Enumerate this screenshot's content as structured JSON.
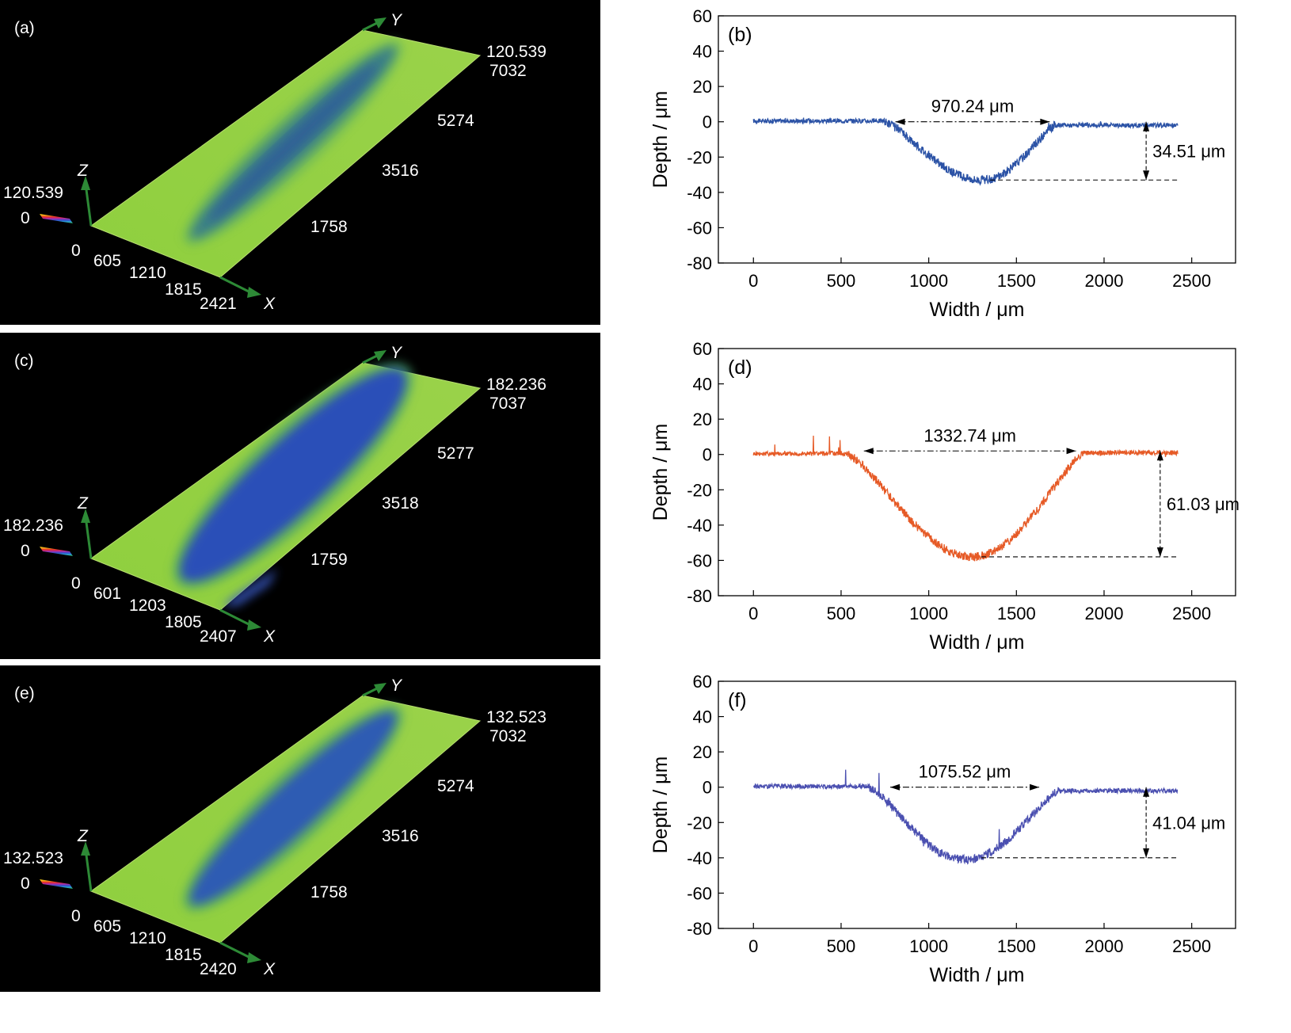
{
  "panels3d": [
    {
      "label": "(a)",
      "zmax": "120.539",
      "zmin": "0",
      "x_axis": "X",
      "y_axis": "Y",
      "z_axis": "Z",
      "x_ticks": [
        "0",
        "605",
        "1210",
        "1815",
        "2421"
      ],
      "y_ticks": [
        "1758",
        "3516",
        "5274",
        "7032"
      ],
      "corner_z": "120.539",
      "groove": "shallow"
    },
    {
      "label": "(c)",
      "zmax": "182.236",
      "zmin": "0",
      "x_axis": "X",
      "y_axis": "Y",
      "z_axis": "Z",
      "x_ticks": [
        "0",
        "601",
        "1203",
        "1805",
        "2407"
      ],
      "y_ticks": [
        "1759",
        "3518",
        "5277",
        "7037"
      ],
      "corner_z": "182.236",
      "groove": "deep"
    },
    {
      "label": "(e)",
      "zmax": "132.523",
      "zmin": "0",
      "x_axis": "X",
      "y_axis": "Y",
      "z_axis": "Z",
      "x_ticks": [
        "0",
        "605",
        "1210",
        "1815",
        "2420"
      ],
      "y_ticks": [
        "1758",
        "3516",
        "5274",
        "7032"
      ],
      "corner_z": "132.523",
      "groove": "medium"
    }
  ],
  "chart_data": [
    {
      "type": "line",
      "panel_label": "(b)",
      "xlabel": "Width / μm",
      "ylabel": "Depth / μm",
      "xlim": [
        -200,
        2750
      ],
      "ylim": [
        -80,
        60
      ],
      "xticks": [
        0,
        500,
        1000,
        1500,
        2000,
        2500
      ],
      "yticks": [
        60,
        40,
        20,
        0,
        -20,
        -40,
        -60,
        -80
      ],
      "grid": false,
      "color": "#2c53a6",
      "profile": {
        "x_start": 0,
        "x_end": 2420,
        "groove_left": 750,
        "groove_right": 1720,
        "min_x": 1300,
        "min_depth": -33,
        "end_level": -2
      },
      "width_annotation": {
        "text": "970.24 μm",
        "x_from": 810,
        "x_to": 1690,
        "y": 0
      },
      "depth_annotation": {
        "text": "34.51 μm",
        "x": 2240,
        "y_from": 0,
        "y_to": -33
      },
      "baseline": {
        "x_from": 1350,
        "x_to": 2420,
        "y": -33
      }
    },
    {
      "type": "line",
      "panel_label": "(d)",
      "xlabel": "Width / μm",
      "ylabel": "Depth / μm",
      "xlim": [
        -200,
        2750
      ],
      "ylim": [
        -80,
        60
      ],
      "xticks": [
        0,
        500,
        1000,
        1500,
        2000,
        2500
      ],
      "yticks": [
        60,
        40,
        20,
        0,
        -20,
        -40,
        -60,
        -80
      ],
      "grid": false,
      "color": "#e65a26",
      "profile": {
        "x_start": 0,
        "x_end": 2420,
        "groove_left": 540,
        "groove_right": 1880,
        "min_x": 1250,
        "min_depth": -58,
        "end_level": 1
      },
      "width_annotation": {
        "text": "1332.74 μm",
        "x_from": 630,
        "x_to": 1840,
        "y": 2
      },
      "depth_annotation": {
        "text": "61.03 μm",
        "x": 2320,
        "y_from": 2,
        "y_to": -58
      },
      "baseline": {
        "x_from": 1300,
        "x_to": 2420,
        "y": -58
      }
    },
    {
      "type": "line",
      "panel_label": "(f)",
      "xlabel": "Width / μm",
      "ylabel": "Depth / μm",
      "xlim": [
        -200,
        2750
      ],
      "ylim": [
        -80,
        60
      ],
      "xticks": [
        0,
        500,
        1000,
        1500,
        2000,
        2500
      ],
      "yticks": [
        60,
        40,
        20,
        0,
        -20,
        -40,
        -60,
        -80
      ],
      "grid": false,
      "color": "#4a4fb0",
      "profile": {
        "x_start": 0,
        "x_end": 2420,
        "groove_left": 660,
        "groove_right": 1740,
        "min_x": 1200,
        "min_depth": -41,
        "end_level": -2
      },
      "width_annotation": {
        "text": "1075.52 μm",
        "x_from": 780,
        "x_to": 1630,
        "y": 0
      },
      "depth_annotation": {
        "text": "41.04 μm",
        "x": 2240,
        "y_from": 0,
        "y_to": -40
      },
      "baseline": {
        "x_from": 1300,
        "x_to": 2420,
        "y": -40
      }
    }
  ]
}
